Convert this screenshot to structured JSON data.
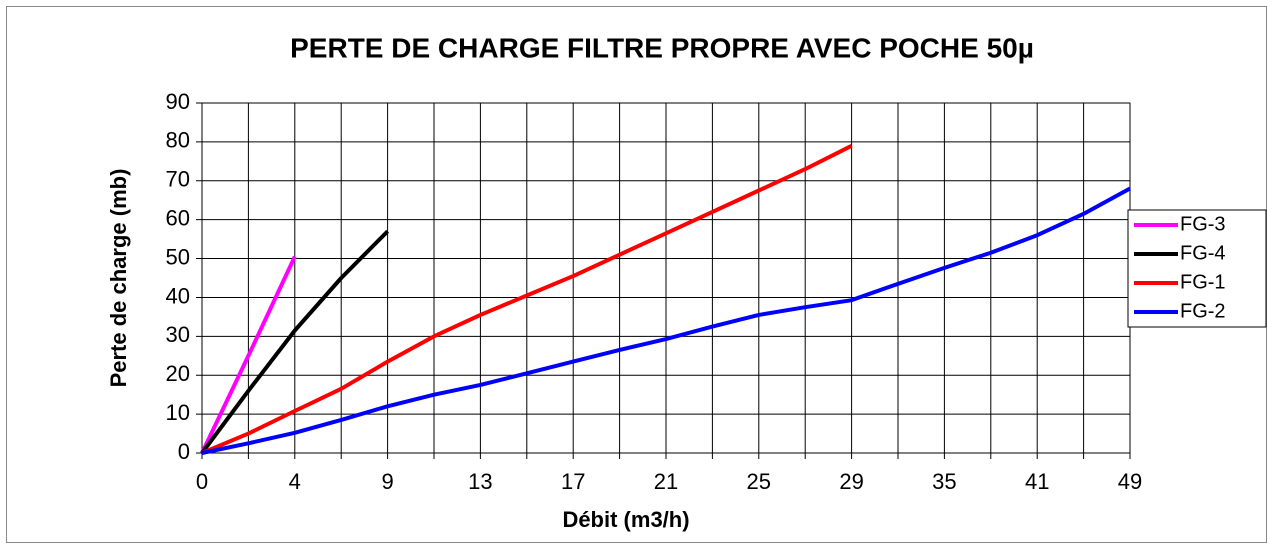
{
  "chart_data": {
    "type": "line",
    "title": "PERTE DE CHARGE FILTRE PROPRE AVEC POCHE 50µ",
    "x_label": "Débit (m3/h)",
    "y_label": "Perte de charge (mb)",
    "categories": [
      "0",
      null,
      "4",
      null,
      "9",
      null,
      "13",
      null,
      "17",
      null,
      "21",
      null,
      "25",
      null,
      "29",
      null,
      "35",
      null,
      "41",
      null,
      "49"
    ],
    "ylim": [
      0,
      90
    ],
    "yticks": [
      0,
      10,
      20,
      30,
      40,
      50,
      60,
      70,
      80,
      90
    ],
    "grid": true,
    "legend": "right",
    "series": [
      {
        "name": "FG-3",
        "color": "#ff00ff",
        "values": [
          0,
          25,
          50.5,
          null,
          null,
          null,
          null,
          null,
          null,
          null,
          null,
          null,
          null,
          null,
          null,
          null,
          null,
          null,
          null,
          null,
          null
        ]
      },
      {
        "name": "FG-4",
        "color": "#000000",
        "values": [
          0,
          16,
          31.5,
          45,
          57,
          null,
          null,
          null,
          null,
          null,
          null,
          null,
          null,
          null,
          null,
          null,
          null,
          null,
          null,
          null,
          null
        ]
      },
      {
        "name": "FG-1",
        "color": "#ff0000",
        "values": [
          0,
          5,
          10.8,
          16.5,
          23.5,
          30,
          35.5,
          40.5,
          45.5,
          51,
          56.5,
          62,
          67.5,
          73,
          79,
          null,
          null,
          null,
          null,
          null,
          null
        ]
      },
      {
        "name": "FG-2",
        "color": "#0000ff",
        "values": [
          0,
          2.5,
          5.2,
          8.5,
          12,
          15,
          17.5,
          20.5,
          23.5,
          26.5,
          29.3,
          32.5,
          35.5,
          37.5,
          39.3,
          43.5,
          47.6,
          51.5,
          56,
          61.5,
          68
        ]
      }
    ]
  }
}
